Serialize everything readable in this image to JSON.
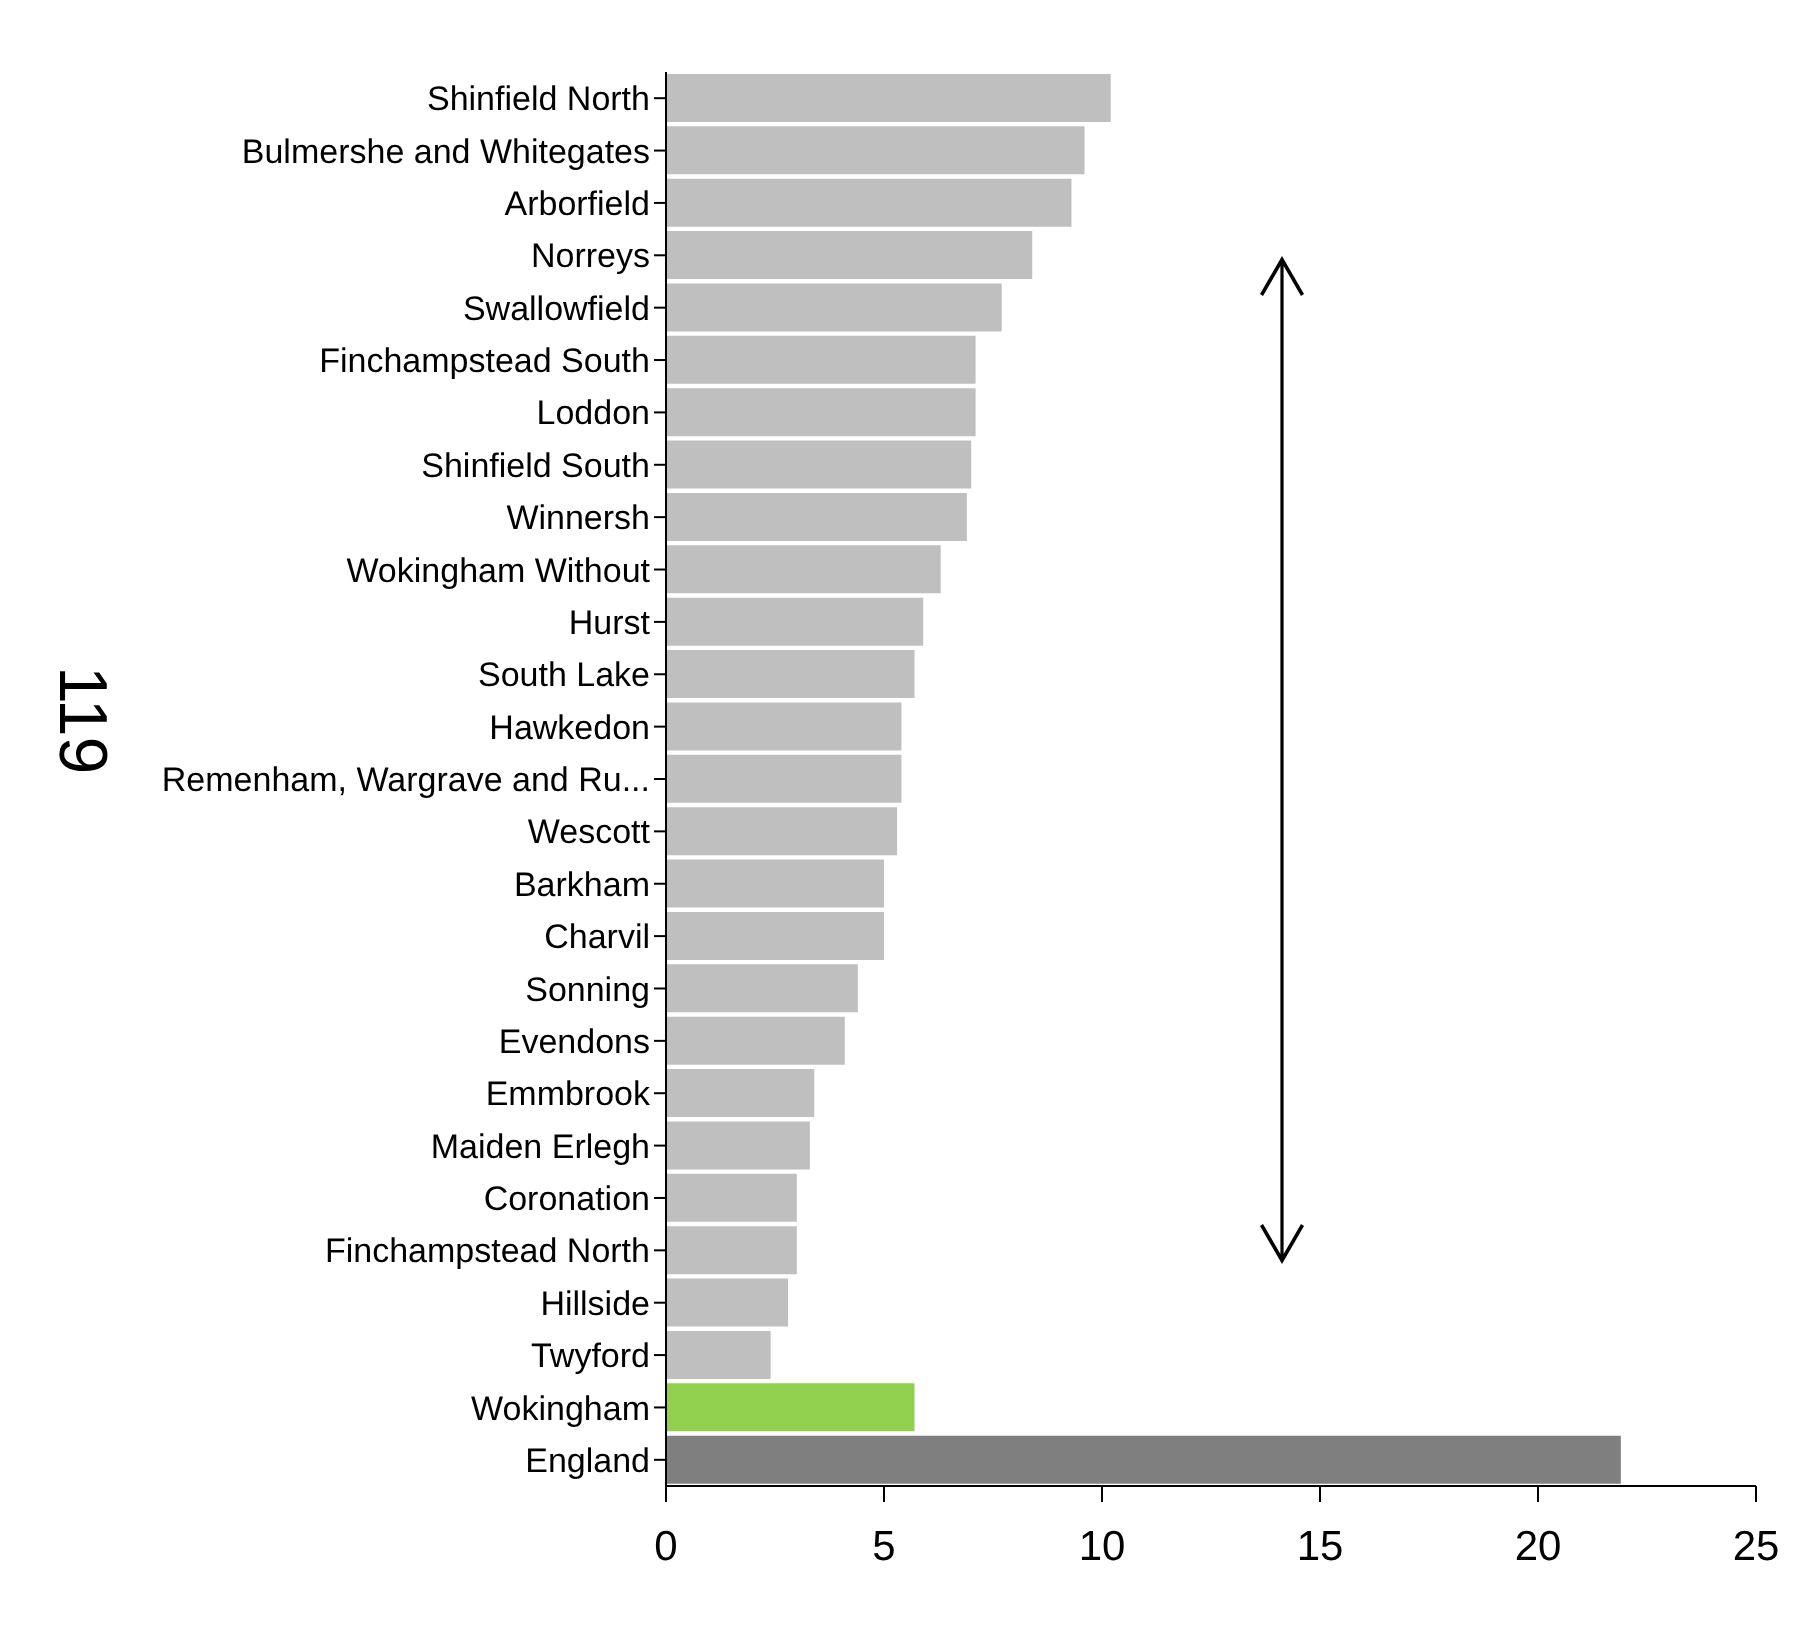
{
  "chart_data": {
    "type": "bar",
    "orientation": "horizontal",
    "categories": [
      "Shinfield North",
      "Bulmershe and Whitegates",
      "Arborfield",
      "Norreys",
      "Swallowfield",
      "Finchampstead South",
      "Loddon",
      "Shinfield South",
      "Winnersh",
      "Wokingham Without",
      "Hurst",
      "South Lake",
      "Hawkedon",
      "Remenham, Wargrave and Ru...",
      "Wescott",
      "Barkham",
      "Charvil",
      "Sonning",
      "Evendons",
      "Emmbrook",
      "Maiden Erlegh",
      "Coronation",
      "Finchampstead North",
      "Hillside",
      "Twyford",
      "Wokingham",
      "England"
    ],
    "values": [
      10.2,
      9.6,
      9.3,
      8.4,
      7.7,
      7.1,
      7.1,
      7.0,
      6.9,
      6.3,
      5.9,
      5.7,
      5.4,
      5.4,
      5.3,
      5.0,
      5.0,
      4.4,
      4.1,
      3.4,
      3.3,
      3.0,
      3.0,
      2.8,
      2.4,
      5.7,
      21.9
    ],
    "colors": [
      "#bfbfbf",
      "#bfbfbf",
      "#bfbfbf",
      "#bfbfbf",
      "#bfbfbf",
      "#bfbfbf",
      "#bfbfbf",
      "#bfbfbf",
      "#bfbfbf",
      "#bfbfbf",
      "#bfbfbf",
      "#bfbfbf",
      "#bfbfbf",
      "#bfbfbf",
      "#bfbfbf",
      "#bfbfbf",
      "#bfbfbf",
      "#bfbfbf",
      "#bfbfbf",
      "#bfbfbf",
      "#bfbfbf",
      "#bfbfbf",
      "#bfbfbf",
      "#bfbfbf",
      "#bfbfbf",
      "#92d050",
      "#7f7f7f"
    ],
    "xlim": [
      0,
      25
    ],
    "xticks": [
      0,
      5,
      10,
      15,
      20,
      25
    ],
    "annotations": [
      "119"
    ]
  }
}
